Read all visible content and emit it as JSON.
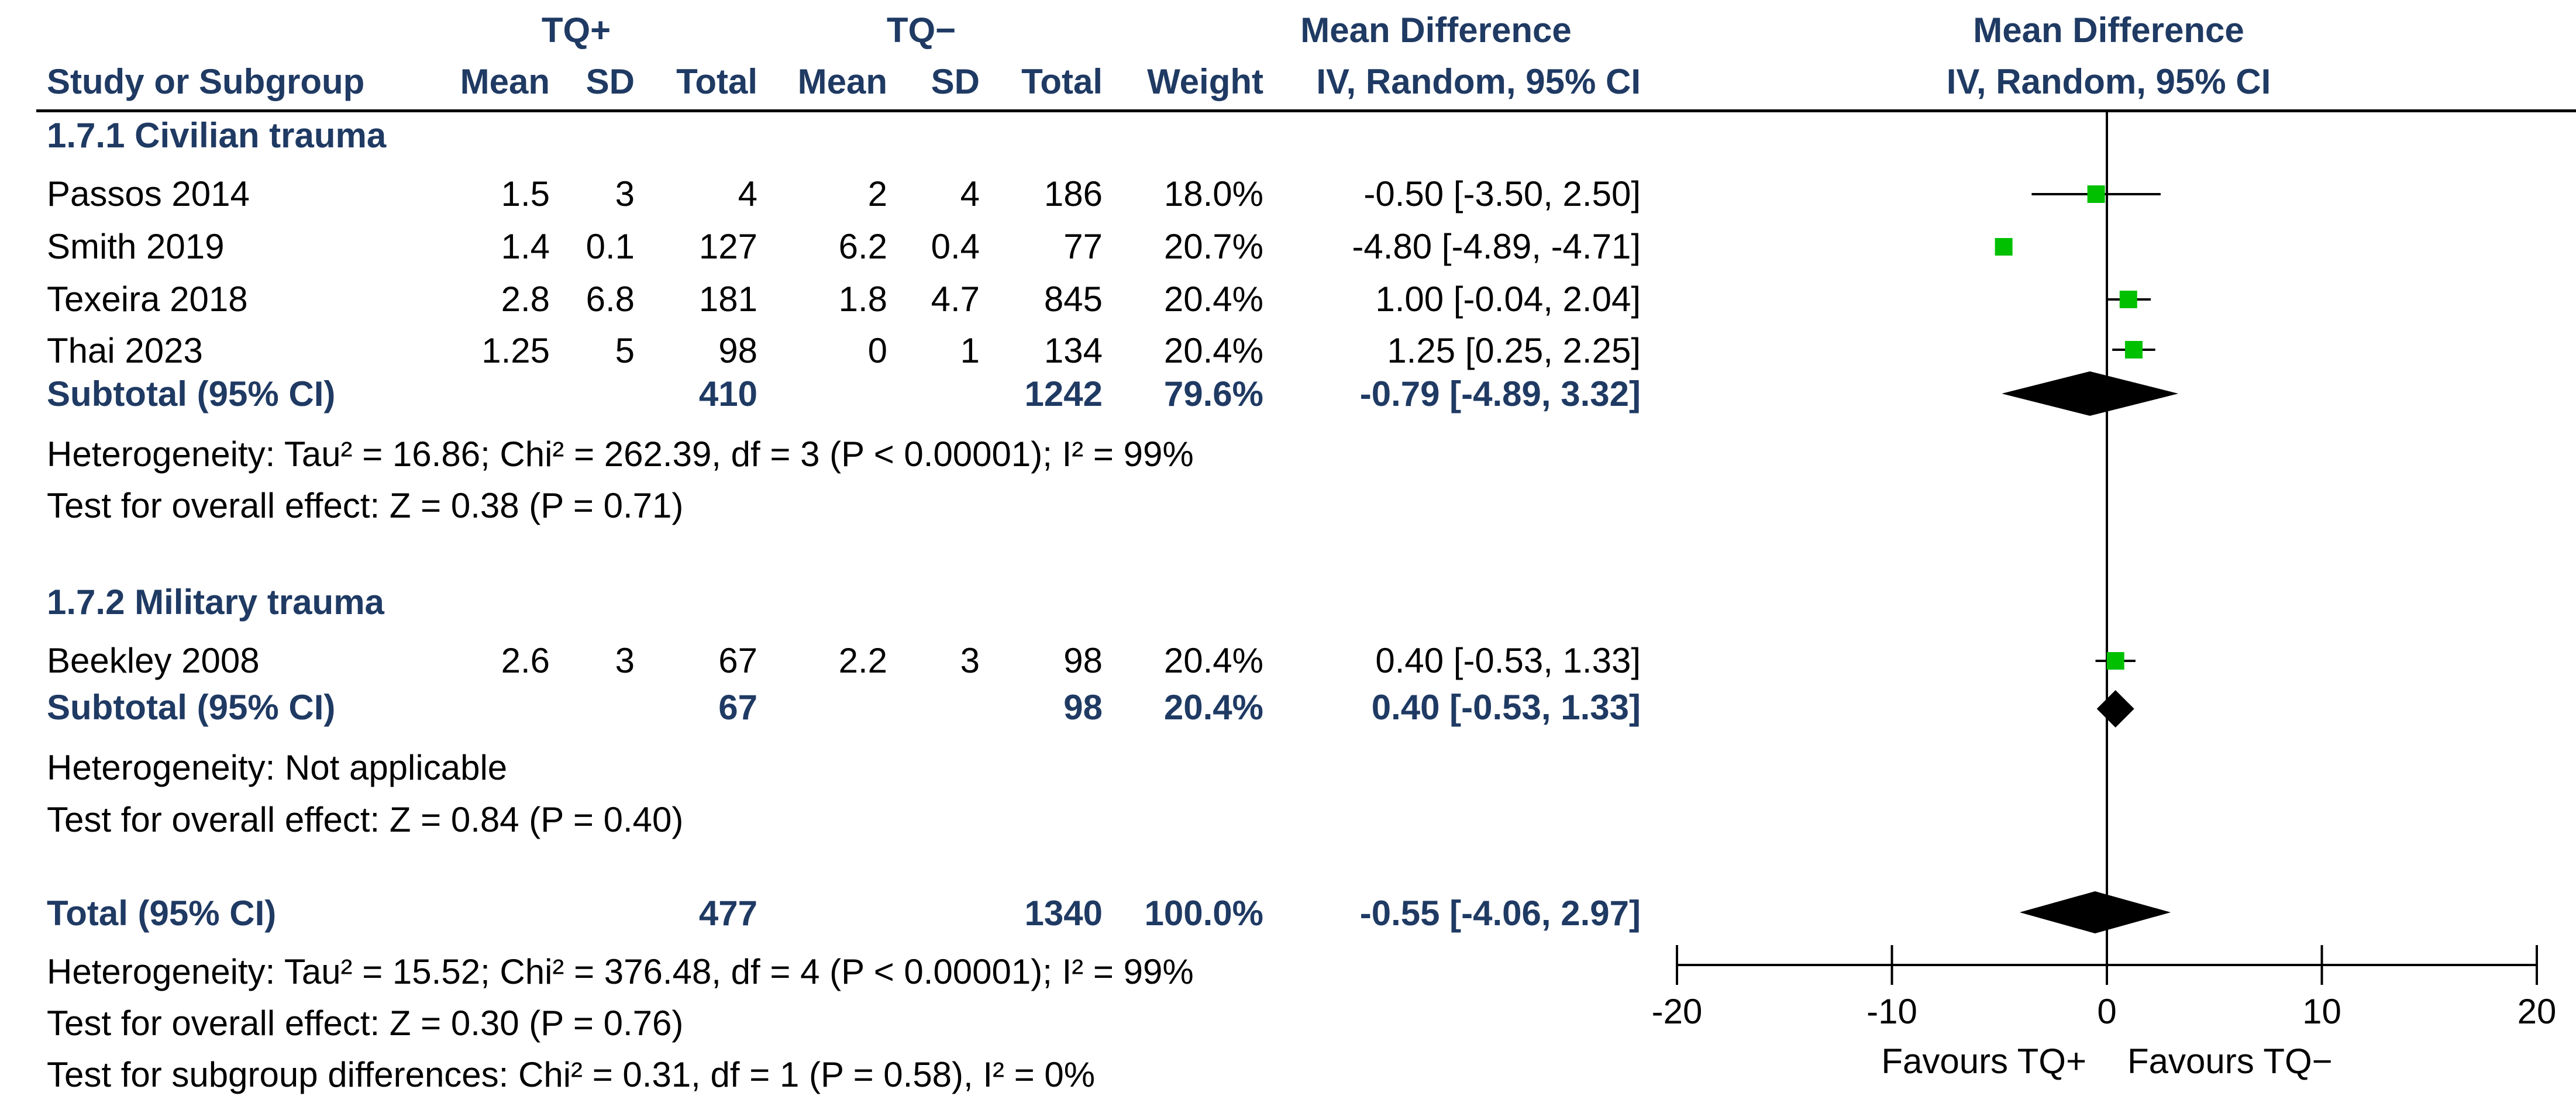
{
  "headers": {
    "group_tq_plus": "TQ+",
    "group_tq_minus": "TQ−",
    "col_study": "Study or Subgroup",
    "col_mean": "Mean",
    "col_sd": "SD",
    "col_total": "Total",
    "col_weight": "Weight",
    "md_title": "Mean Difference",
    "md_method": "IV, Random, 95% CI",
    "plot_title": "Mean Difference",
    "plot_method": "IV, Random, 95% CI"
  },
  "subgroups": [
    {
      "title": "1.7.1 Civilian trauma",
      "studies": [
        {
          "name": "Passos 2014",
          "mean1": "1.5",
          "sd1": "3",
          "n1": "4",
          "mean2": "2",
          "sd2": "4",
          "n2": "186",
          "weight": "18.0%",
          "ci_text": "-0.50 [-3.50, 2.50]"
        },
        {
          "name": "Smith 2019",
          "mean1": "1.4",
          "sd1": "0.1",
          "n1": "127",
          "mean2": "6.2",
          "sd2": "0.4",
          "n2": "77",
          "weight": "20.7%",
          "ci_text": "-4.80 [-4.89, -4.71]"
        },
        {
          "name": "Texeira 2018",
          "mean1": "2.8",
          "sd1": "6.8",
          "n1": "181",
          "mean2": "1.8",
          "sd2": "4.7",
          "n2": "845",
          "weight": "20.4%",
          "ci_text": "1.00 [-0.04, 2.04]"
        },
        {
          "name": "Thai 2023",
          "mean1": "1.25",
          "sd1": "5",
          "n1": "98",
          "mean2": "0",
          "sd2": "1",
          "n2": "134",
          "weight": "20.4%",
          "ci_text": "1.25 [0.25, 2.25]"
        }
      ],
      "subtotal": {
        "label": "Subtotal (95% CI)",
        "n1": "410",
        "n2": "1242",
        "weight": "79.6%",
        "ci_text": "-0.79 [-4.89, 3.32]"
      },
      "heterogeneity": "Heterogeneity: Tau² = 16.86; Chi² = 262.39, df = 3 (P < 0.00001); I² = 99%",
      "overall": "Test for overall effect: Z = 0.38 (P = 0.71)"
    },
    {
      "title": "1.7.2 Military trauma",
      "studies": [
        {
          "name": "Beekley 2008",
          "mean1": "2.6",
          "sd1": "3",
          "n1": "67",
          "mean2": "2.2",
          "sd2": "3",
          "n2": "98",
          "weight": "20.4%",
          "ci_text": "0.40 [-0.53, 1.33]"
        }
      ],
      "subtotal": {
        "label": "Subtotal (95% CI)",
        "n1": "67",
        "n2": "98",
        "weight": "20.4%",
        "ci_text": "0.40 [-0.53, 1.33]"
      },
      "heterogeneity": "Heterogeneity: Not applicable",
      "overall": "Test for overall effect: Z = 0.84 (P = 0.40)"
    }
  ],
  "total": {
    "label": "Total (95% CI)",
    "n1": "477",
    "n2": "1340",
    "weight": "100.0%",
    "ci_text": "-0.55 [-4.06, 2.97]"
  },
  "footer": {
    "heterogeneity": "Heterogeneity: Tau² = 15.52; Chi² = 376.48, df = 4 (P < 0.00001); I² = 99%",
    "overall": "Test for overall effect: Z = 0.30 (P = 0.76)",
    "subgroup_diff": "Test for subgroup differences: Chi² = 0.31, df = 1 (P = 0.58), I² = 0%"
  },
  "colors": {
    "study_marker": "#00c000",
    "diamond": "#000000",
    "header_text": "#1f3a63"
  },
  "chart_data": {
    "type": "forest",
    "title": "Mean Difference",
    "method": "IV, Random, 95% CI",
    "xlim": [
      -20,
      20
    ],
    "xticks": [
      -20,
      -10,
      0,
      10,
      20
    ],
    "xtick_labels": [
      "-20",
      "-10",
      "0",
      "10",
      "20"
    ],
    "favours_left": "Favours TQ+",
    "favours_right": "Favours TQ−",
    "studies": [
      {
        "name": "Passos 2014",
        "est": -0.5,
        "lo": -3.5,
        "hi": 2.5,
        "weight": 18.0
      },
      {
        "name": "Smith 2019",
        "est": -4.8,
        "lo": -4.89,
        "hi": -4.71,
        "weight": 20.7
      },
      {
        "name": "Texeira 2018",
        "est": 1.0,
        "lo": -0.04,
        "hi": 2.04,
        "weight": 20.4
      },
      {
        "name": "Thai 2023",
        "est": 1.25,
        "lo": 0.25,
        "hi": 2.25,
        "weight": 20.4
      },
      {
        "name": "Beekley 2008",
        "est": 0.4,
        "lo": -0.53,
        "hi": 1.33,
        "weight": 20.4
      }
    ],
    "pooled": [
      {
        "name": "Subtotal 1.7.1",
        "est": -0.79,
        "lo": -4.89,
        "hi": 3.32
      },
      {
        "name": "Subtotal 1.7.2",
        "est": 0.4,
        "lo": -0.53,
        "hi": 1.33
      },
      {
        "name": "Total",
        "est": -0.55,
        "lo": -4.06,
        "hi": 2.97
      }
    ]
  }
}
